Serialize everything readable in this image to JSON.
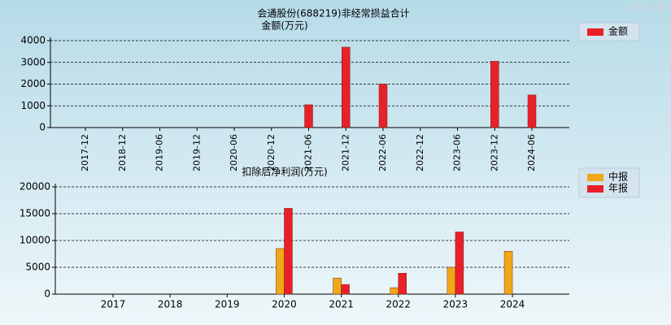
{
  "watermark": "CFi.CN",
  "chart_data": [
    {
      "type": "bar",
      "title": "会通股份(688219)非经常损益合计",
      "y_label": "金额(万元)",
      "categories": [
        "2017-12",
        "2018-12",
        "2019-06",
        "2019-12",
        "2020-06",
        "2020-12",
        "2021-06",
        "2021-12",
        "2022-06",
        "2022-12",
        "2023-06",
        "2023-12",
        "2024-06"
      ],
      "series": [
        {
          "name": "金额",
          "color": "#e8202a",
          "values": [
            null,
            null,
            null,
            null,
            null,
            null,
            1050,
            3700,
            2000,
            null,
            null,
            3050,
            1500
          ]
        }
      ],
      "ylim": [
        0,
        4000
      ],
      "yticks": [
        0,
        1000,
        2000,
        3000,
        4000
      ],
      "grid": true
    },
    {
      "type": "bar",
      "title": "扣除后净利润(万元)",
      "categories": [
        "2017",
        "2018",
        "2019",
        "2020",
        "2021",
        "2022",
        "2023",
        "2024"
      ],
      "series": [
        {
          "name": "中报",
          "color": "#f0a818",
          "values": [
            null,
            null,
            null,
            8500,
            3000,
            1200,
            5000,
            8000
          ]
        },
        {
          "name": "年报",
          "color": "#e8202a",
          "values": [
            null,
            null,
            null,
            16000,
            1800,
            3900,
            11600,
            null
          ]
        }
      ],
      "ylim": [
        0,
        20000
      ],
      "yticks": [
        0,
        5000,
        10000,
        15000,
        20000
      ],
      "grid": true
    }
  ]
}
